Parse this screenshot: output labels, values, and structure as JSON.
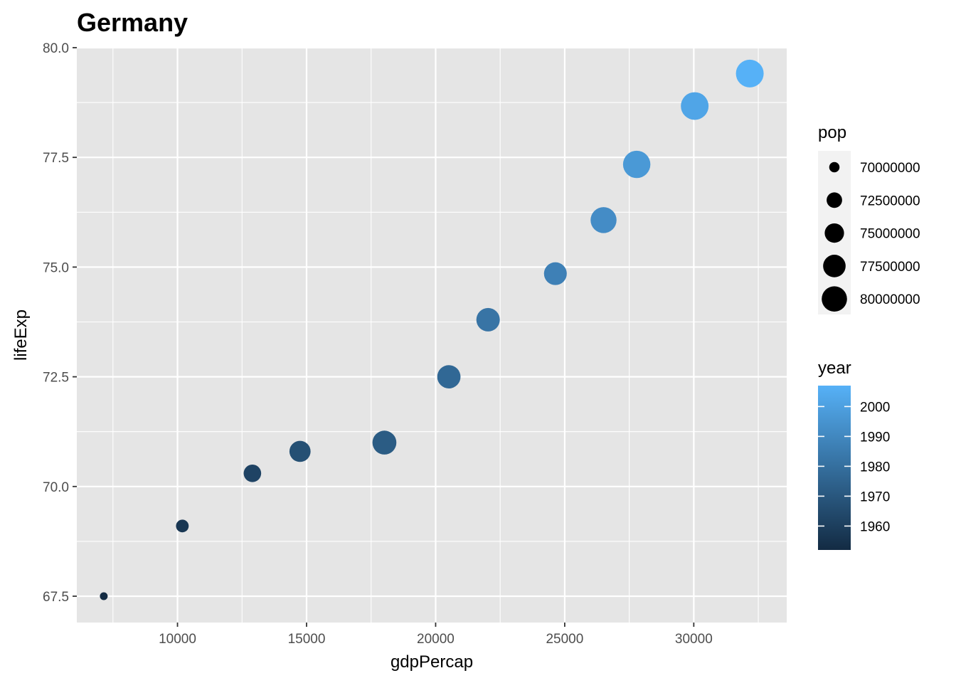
{
  "chart_data": {
    "type": "scatter",
    "title": "Germany",
    "xlabel": "gdpPercap",
    "ylabel": "lifeExp",
    "xlim": [
      6100,
      33600
    ],
    "ylim": [
      66.9,
      80.0
    ],
    "x_ticks": [
      10000,
      15000,
      20000,
      25000,
      30000
    ],
    "x_tick_labels": [
      "10000",
      "15000",
      "20000",
      "25000",
      "30000"
    ],
    "y_ticks": [
      67.5,
      70.0,
      72.5,
      75.0,
      77.5,
      80.0
    ],
    "y_tick_labels": [
      "67.5",
      "70.0",
      "72.5",
      "75.0",
      "77.5",
      "80.0"
    ],
    "grid": true,
    "points": [
      {
        "year": 1952,
        "gdpPercap": 7144,
        "lifeExp": 67.5,
        "pop": 69145952
      },
      {
        "year": 1957,
        "gdpPercap": 10188,
        "lifeExp": 69.1,
        "pop": 71019069
      },
      {
        "year": 1962,
        "gdpPercap": 12902,
        "lifeExp": 70.3,
        "pop": 73739117
      },
      {
        "year": 1967,
        "gdpPercap": 14746,
        "lifeExp": 70.8,
        "pop": 76368453
      },
      {
        "year": 1972,
        "gdpPercap": 18016,
        "lifeExp": 71.0,
        "pop": 78717088
      },
      {
        "year": 1977,
        "gdpPercap": 20513,
        "lifeExp": 72.5,
        "pop": 78160773
      },
      {
        "year": 1982,
        "gdpPercap": 22032,
        "lifeExp": 73.8,
        "pop": 78335266
      },
      {
        "year": 1987,
        "gdpPercap": 24639,
        "lifeExp": 74.85,
        "pop": 77718298
      },
      {
        "year": 1992,
        "gdpPercap": 26505,
        "lifeExp": 76.07,
        "pop": 80597764
      },
      {
        "year": 1997,
        "gdpPercap": 27789,
        "lifeExp": 77.34,
        "pop": 82011073
      },
      {
        "year": 2002,
        "gdpPercap": 30036,
        "lifeExp": 78.67,
        "pop": 82350671
      },
      {
        "year": 2007,
        "gdpPercap": 32170,
        "lifeExp": 79.41,
        "pop": 82400996
      }
    ],
    "size_legend": {
      "title": "pop",
      "breaks": [
        70000000,
        72500000,
        75000000,
        77500000,
        80000000
      ],
      "labels": [
        "70000000",
        "72500000",
        "75000000",
        "77500000",
        "80000000"
      ]
    },
    "color_legend": {
      "title": "year",
      "breaks": [
        1960,
        1970,
        1980,
        1990,
        2000
      ],
      "labels": [
        "1960",
        "1970",
        "1980",
        "1990",
        "2000"
      ],
      "range": [
        1952,
        2007
      ],
      "low_color": "#132B43",
      "high_color": "#56B1F7"
    },
    "colors": {
      "panel_background": "#e5e5e5",
      "grid_line": "#ffffff"
    }
  }
}
